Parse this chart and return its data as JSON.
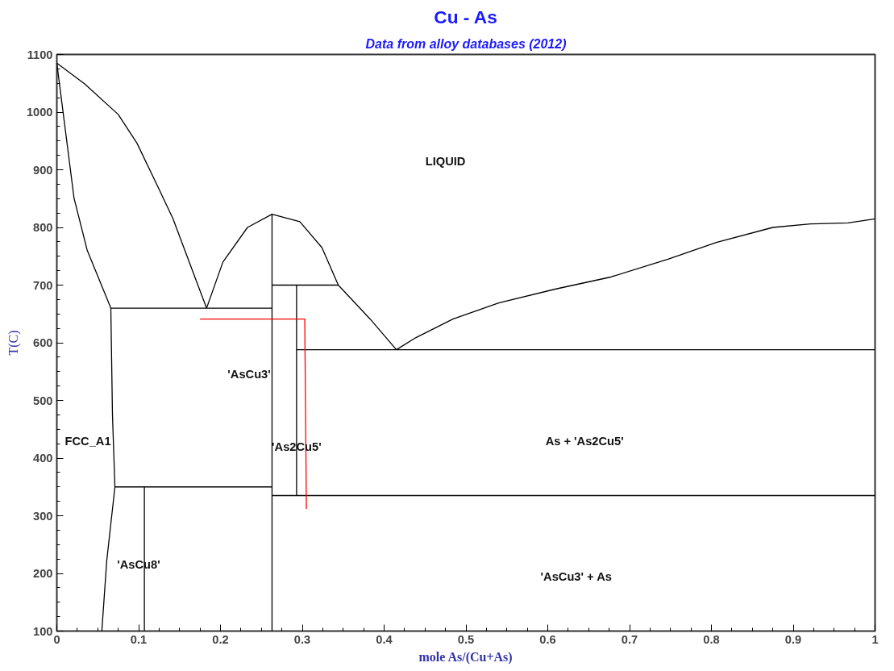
{
  "chart_data": {
    "type": "line",
    "title": "Cu - As",
    "subtitle": "Data from alloy databases (2012)",
    "xlabel": "mole As/(Cu+As)",
    "ylabel": "T(C)",
    "xlim": [
      0,
      1
    ],
    "ylim": [
      100,
      1100
    ],
    "xticks": [
      0,
      0.1,
      0.2,
      0.3,
      0.4,
      0.5,
      0.6,
      0.7,
      0.8,
      0.9,
      1
    ],
    "yticks": [
      100,
      200,
      300,
      400,
      500,
      600,
      700,
      800,
      900,
      1000,
      1100
    ],
    "grid": false,
    "marker": "none",
    "line_style": "solid",
    "series": [
      {
        "color": "#000000",
        "x": [
          0,
          0.034,
          0.075,
          0.098,
          0.125,
          0.142,
          0.166,
          0.183
        ],
        "values": [
          1085,
          1049,
          996,
          946,
          866,
          815,
          724,
          660
        ]
      },
      {
        "color": "#000000",
        "x": [
          0,
          0.021,
          0.037,
          0.066,
          0.068,
          0.071,
          0.061,
          0.055
        ],
        "values": [
          1085,
          851,
          761,
          660,
          474,
          350,
          222,
          100
        ]
      },
      {
        "color": "#000000",
        "x": [
          0.066,
          0.263
        ],
        "values": [
          660,
          660
        ]
      },
      {
        "color": "#000000",
        "x": [
          0.183,
          0.203,
          0.233,
          0.263,
          0.297,
          0.324,
          0.344,
          0.383,
          0.415
        ],
        "values": [
          660,
          740,
          800,
          823,
          810,
          765,
          700,
          641,
          588
        ]
      },
      {
        "color": "#000000",
        "x": [
          0.263,
          0.263
        ],
        "values": [
          100,
          823
        ]
      },
      {
        "color": "#000000",
        "x": [
          0.263,
          0.344
        ],
        "values": [
          700,
          700
        ]
      },
      {
        "color": "#000000",
        "x": [
          0.293,
          0.293
        ],
        "values": [
          335,
          700
        ]
      },
      {
        "color": "#000000",
        "x": [
          0.293,
          1
        ],
        "values": [
          588,
          588
        ]
      },
      {
        "color": "#000000",
        "x": [
          0.415,
          0.439,
          0.484,
          0.54,
          0.609,
          0.677,
          0.747,
          0.806,
          0.875,
          0.921,
          0.967,
          1
        ],
        "values": [
          588,
          609,
          641,
          669,
          693,
          714,
          745,
          774,
          800,
          806,
          808,
          815
        ]
      },
      {
        "color": "#000000",
        "x": [
          0.263,
          1
        ],
        "values": [
          335,
          335
        ]
      },
      {
        "color": "#000000",
        "x": [
          0.071,
          0.263
        ],
        "values": [
          350,
          350
        ]
      },
      {
        "color": "#000000",
        "x": [
          0.107,
          0.107
        ],
        "values": [
          100,
          350
        ]
      },
      {
        "color": "#ff0000",
        "x": [
          0.175,
          0.303,
          0.305
        ],
        "values": [
          641,
          641,
          312
        ]
      }
    ],
    "annotations": [
      "LIQUID",
      "FCC_A1",
      "'AsCu3'",
      "'As2Cu5'",
      "As + 'As2Cu5'",
      "'AsCu8'",
      "'AsCu3' + As"
    ]
  }
}
